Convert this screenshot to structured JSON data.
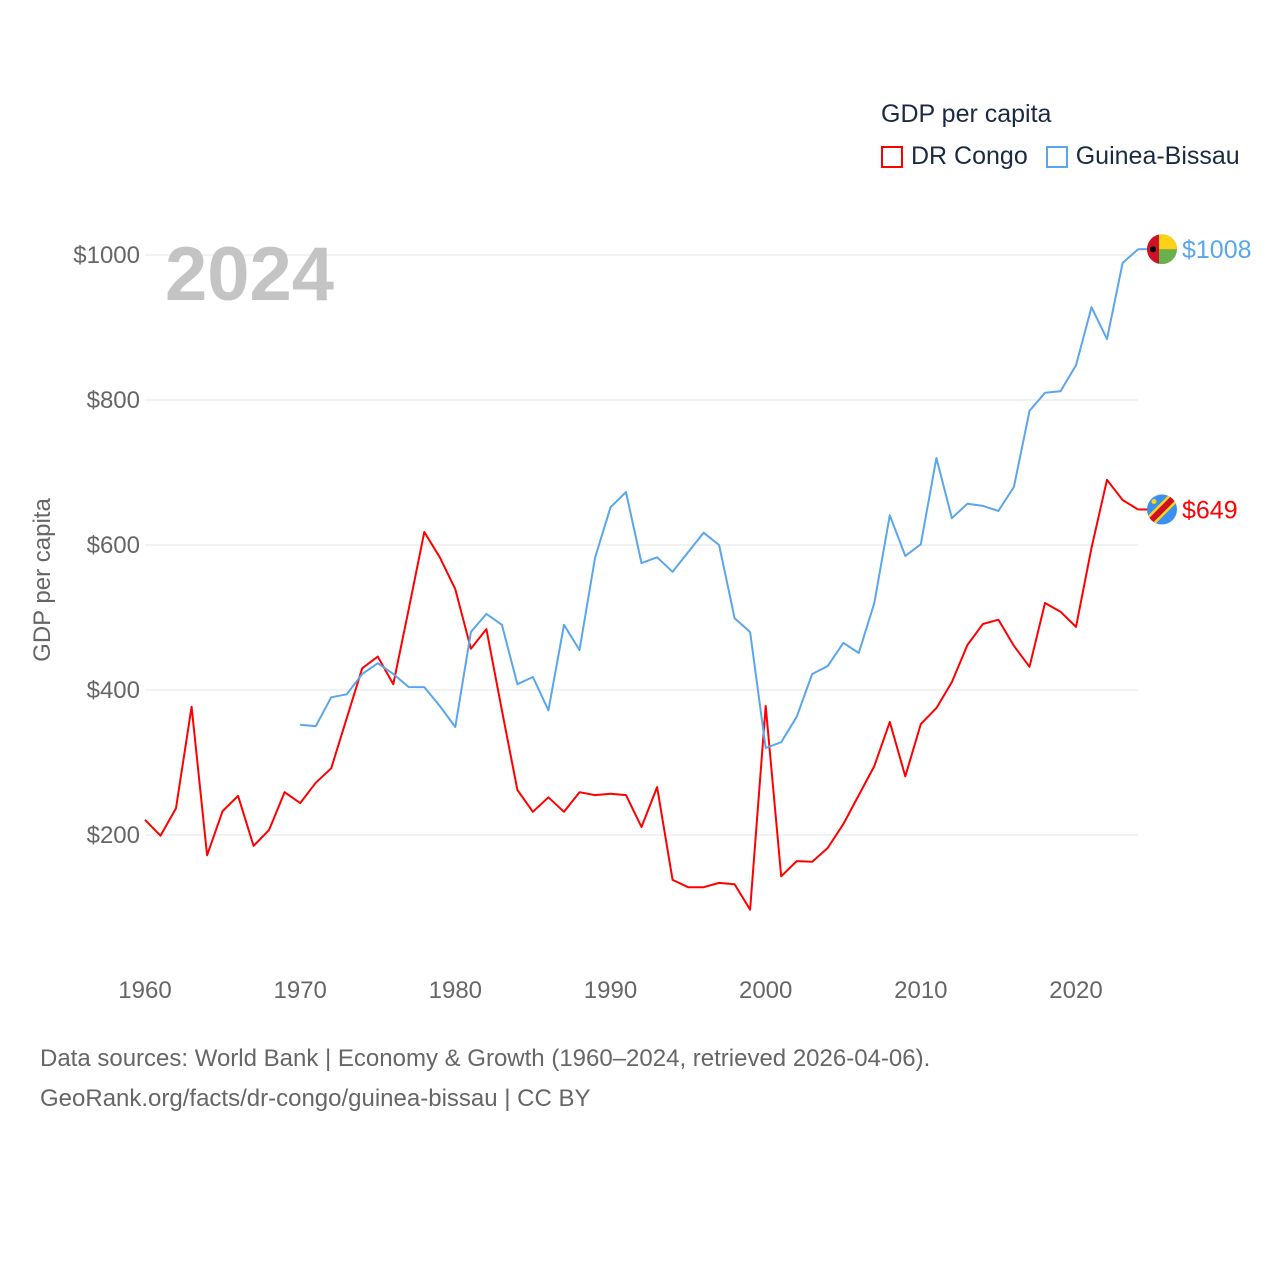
{
  "legend": {
    "title": "GDP per capita",
    "items": [
      {
        "label": "DR Congo",
        "color": "#ff0000"
      },
      {
        "label": "Guinea-Bissau",
        "color": "#5aa6ec"
      }
    ]
  },
  "year_watermark": "2024",
  "footer": {
    "line1": "Data sources: World Bank | Economy & Growth (1960–2024, retrieved 2026-04-06).",
    "line2": "GeoRank.org/facts/dr-congo/guinea-bissau | CC BY"
  },
  "chart_data": {
    "type": "line",
    "ylabel": "GDP per capita",
    "xlabel": "",
    "xlim": [
      1960,
      2024
    ],
    "ylim": [
      80,
      1050
    ],
    "x_ticks": [
      "1960",
      "1970",
      "1980",
      "1990",
      "2000",
      "2010",
      "2020"
    ],
    "y_ticks": [
      {
        "value": 200,
        "label": "$200"
      },
      {
        "value": 400,
        "label": "$400"
      },
      {
        "value": 600,
        "label": "$600"
      },
      {
        "value": 800,
        "label": "$800"
      },
      {
        "value": 1000,
        "label": "$1000"
      }
    ],
    "grid": true,
    "series": [
      {
        "name": "DR Congo",
        "color": "#ff0000",
        "start_year": 1960,
        "end_label": "$649",
        "flag": "dr-congo-flag-icon",
        "values": [
          221,
          199,
          237,
          377,
          172,
          233,
          254,
          185,
          207,
          259,
          244,
          272,
          292,
          361,
          430,
          446,
          408,
          512,
          618,
          583,
          539,
          457,
          484,
          372,
          262,
          232,
          252,
          232,
          259,
          255,
          257,
          255,
          211,
          266,
          138,
          128,
          128,
          134,
          132,
          97,
          378,
          143,
          164,
          163,
          182,
          215,
          255,
          295,
          356,
          281,
          353,
          375,
          411,
          462,
          491,
          497,
          461,
          432,
          520,
          508,
          487,
          596,
          690,
          662,
          649
        ]
      },
      {
        "name": "Guinea-Bissau",
        "color": "#5aa6ec",
        "start_year": 1970,
        "end_label": "$1008",
        "flag": "guinea-bissau-flag-icon",
        "values": [
          352,
          350,
          390,
          394,
          422,
          437,
          422,
          404,
          404,
          378,
          349,
          480,
          505,
          490,
          408,
          418,
          372,
          490,
          455,
          582,
          652,
          673,
          575,
          583,
          563,
          590,
          617,
          600,
          499,
          480,
          320,
          328,
          363,
          422,
          433,
          465,
          451,
          520,
          641,
          585,
          601,
          720,
          637,
          657,
          654,
          647,
          680,
          785,
          810,
          812,
          848,
          928,
          884,
          989,
          1008
        ]
      }
    ]
  }
}
